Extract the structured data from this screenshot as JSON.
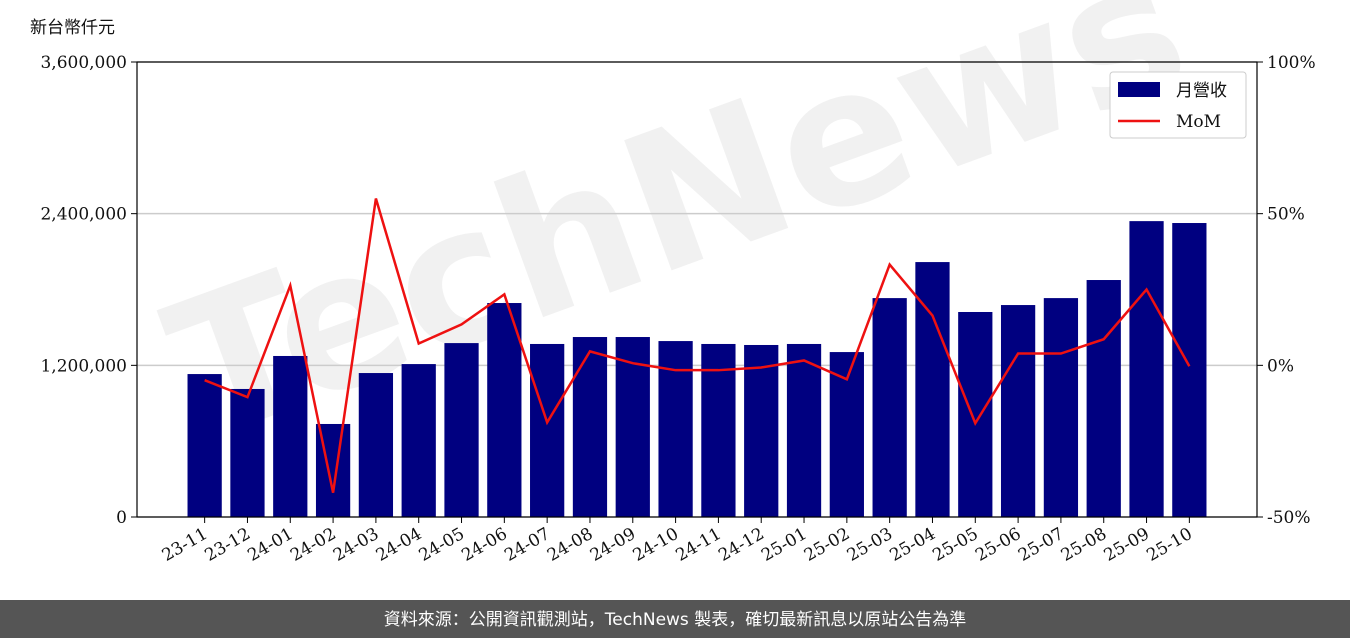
{
  "chart_data": {
    "type": "bar",
    "y_axis_label": "新台幣仟元",
    "watermark": "TechNews",
    "footer": "資料來源：公開資訊觀測站，TechNews 製表，確切最新訊息以原站公告為準",
    "categories": [
      "23-11",
      "23-12",
      "24-01",
      "24-02",
      "24-03",
      "24-04",
      "24-05",
      "24-06",
      "24-07",
      "24-08",
      "24-09",
      "24-10",
      "24-11",
      "24-12",
      "25-01",
      "25-02",
      "25-03",
      "25-04",
      "25-05",
      "25-06",
      "25-07",
      "25-08",
      "25-09",
      "25-10"
    ],
    "series": [
      {
        "name": "月營收",
        "type": "bar",
        "color": "#000080",
        "values": [
          1131000,
          1013000,
          1274000,
          736000,
          1139000,
          1210000,
          1376000,
          1693000,
          1369000,
          1424000,
          1424000,
          1392000,
          1369000,
          1361000,
          1369000,
          1305000,
          1732000,
          2017000,
          1622000,
          1677000,
          1732000,
          1875000,
          2341000,
          2326000
        ]
      },
      {
        "name": "MoM",
        "type": "line",
        "axis": "y2",
        "color": "#ee1111",
        "values": [
          -4.9,
          -10.5,
          26.3,
          -42,
          55,
          7.2,
          13.5,
          23.4,
          -18.8,
          4.6,
          0.7,
          -1.6,
          -1.6,
          -0.7,
          1.6,
          -4.6,
          33.2,
          16.4,
          -19.1,
          3.9,
          3.9,
          8.6,
          25,
          -0.3
        ]
      }
    ],
    "ylim": [
      0,
      3600000
    ],
    "yticks": [
      {
        "value": 0,
        "label": "0"
      },
      {
        "value": 1200000,
        "label": "1,200,000"
      },
      {
        "value": 2400000,
        "label": "2,400,000"
      },
      {
        "value": 3600000,
        "label": "3,600,000"
      }
    ],
    "y2lim": [
      -50,
      100
    ],
    "y2ticks": [
      {
        "value": -50,
        "label": "-50%"
      },
      {
        "value": 0,
        "label": "0%"
      },
      {
        "value": 50,
        "label": "50%"
      },
      {
        "value": 100,
        "label": "100%"
      }
    ],
    "grid": true,
    "legend": "upper right"
  }
}
